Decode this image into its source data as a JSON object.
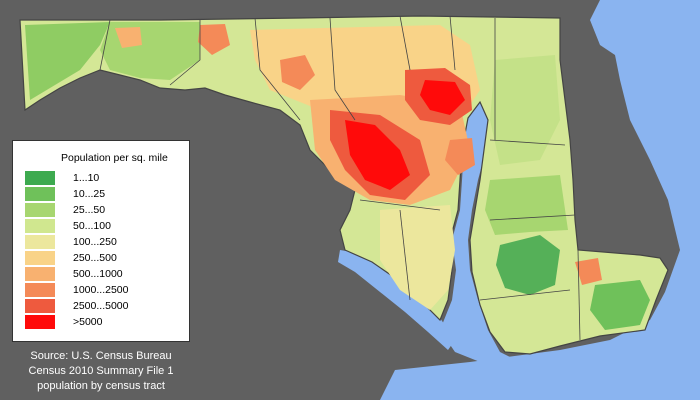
{
  "legend": {
    "title": "Population per sq. mile",
    "entries": [
      {
        "label": "1...10",
        "color": "#3daa4f"
      },
      {
        "label": "10...25",
        "color": "#6fc15a"
      },
      {
        "label": "25...50",
        "color": "#a7d670"
      },
      {
        "label": "50...100",
        "color": "#d0e78f"
      },
      {
        "label": "100...250",
        "color": "#ece79d"
      },
      {
        "label": "250...500",
        "color": "#f9d388"
      },
      {
        "label": "500...1000",
        "color": "#f8b170"
      },
      {
        "label": "1000...2500",
        "color": "#f48a58"
      },
      {
        "label": "2500...5000",
        "color": "#ee5a3e"
      },
      {
        "label": ">5000",
        "color": "#ff0a0a"
      }
    ]
  },
  "source": {
    "line1": "Source: U.S. Census Bureau",
    "line2": "Census 2010 Summary File 1",
    "line3": "population by census tract"
  },
  "colors": {
    "background": "#606060",
    "water": "#8ab4f0",
    "border": "#444444",
    "dense_urban": "#ff0a0a"
  }
}
